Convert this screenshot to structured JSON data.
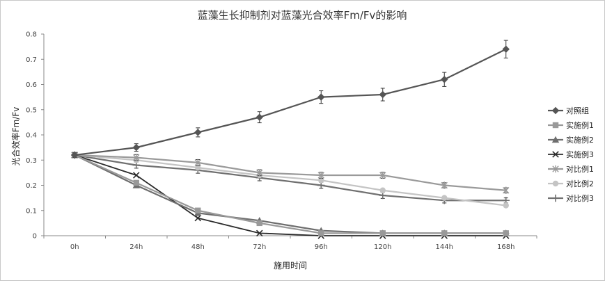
{
  "chart_data": {
    "type": "line",
    "title": "蓝藻生长抑制剂对蓝藻光合效率Fm/Fv的影响",
    "xlabel": "施用时间",
    "ylabel": "光合效率Fm/Fv",
    "categories": [
      "0h",
      "24h",
      "48h",
      "72h",
      "96h",
      "120h",
      "144h",
      "168h"
    ],
    "ylim": [
      0,
      0.8
    ],
    "yticks": [
      "0",
      "0.1",
      "0.2",
      "0.3",
      "0.4",
      "0.5",
      "0.6",
      "0.7",
      "0.8"
    ],
    "legend_position": "right",
    "grid": false,
    "series": [
      {
        "name": "对照组",
        "values": [
          0.32,
          0.35,
          0.41,
          0.47,
          0.55,
          0.56,
          0.62,
          0.74
        ],
        "errors": [
          0.01,
          0.015,
          0.018,
          0.022,
          0.025,
          0.025,
          0.028,
          0.035
        ],
        "color": "#555555",
        "marker": "diamond",
        "width": 2.2
      },
      {
        "name": "实施例1",
        "values": [
          0.32,
          0.21,
          0.1,
          0.05,
          0.01,
          0.01,
          0.01,
          0.01
        ],
        "errors": [],
        "color": "#999999",
        "marker": "square",
        "width": 2.2
      },
      {
        "name": "实施例2",
        "values": [
          0.32,
          0.2,
          0.09,
          0.06,
          0.02,
          0.01,
          0.01,
          0.01
        ],
        "errors": [],
        "color": "#6e6e6e",
        "marker": "triangle",
        "width": 2.2
      },
      {
        "name": "实施例3",
        "values": [
          0.32,
          0.24,
          0.07,
          0.01,
          0.0,
          0.0,
          0.0,
          0.0
        ],
        "errors": [],
        "color": "#2b2b2b",
        "marker": "x",
        "width": 1.8
      },
      {
        "name": "对比例1",
        "values": [
          0.32,
          0.31,
          0.29,
          0.25,
          0.24,
          0.24,
          0.2,
          0.18
        ],
        "errors": [
          0.01,
          0.012,
          0.012,
          0.012,
          0.012,
          0.012,
          0.01,
          0.01
        ],
        "color": "#9a9a9a",
        "marker": "star",
        "width": 2.2
      },
      {
        "name": "对比例2",
        "values": [
          0.32,
          0.3,
          0.27,
          0.24,
          0.22,
          0.18,
          0.15,
          0.12
        ],
        "errors": [],
        "color": "#c4c4c4",
        "marker": "circle",
        "width": 2.2
      },
      {
        "name": "对比例3",
        "values": [
          0.32,
          0.28,
          0.26,
          0.23,
          0.2,
          0.16,
          0.14,
          0.14
        ],
        "errors": [
          0.01,
          0.012,
          0.012,
          0.012,
          0.012,
          0.012,
          0.01,
          0.01
        ],
        "color": "#707070",
        "marker": "plus",
        "width": 2.2
      }
    ]
  }
}
